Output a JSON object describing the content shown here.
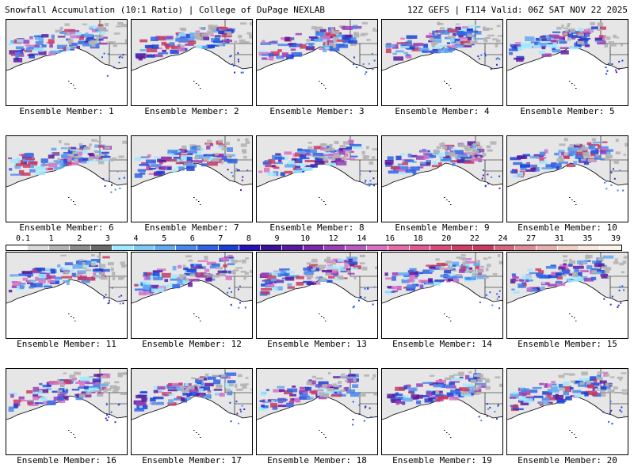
{
  "header": {
    "title": "Snowfall Accumulation (10:1 Ratio) | College of DuPage NEXLAB",
    "run_info": "12Z GEFS | F114 Valid: 06Z SAT NOV 22 2025"
  },
  "legend": {
    "ticks": [
      "0.1",
      "1",
      "2",
      "3",
      "4",
      "5",
      "6",
      "7",
      "8",
      "9",
      "10",
      "12",
      "14",
      "16",
      "18",
      "20",
      "22",
      "24",
      "27",
      "31",
      "35",
      "39"
    ],
    "colors": [
      "#ffffff",
      "#d9d9d9",
      "#b3b3b3",
      "#8c8c8c",
      "#6a6a6a",
      "#9ee9ff",
      "#7ec8f6",
      "#63a8f0",
      "#4a86ea",
      "#2f63e3",
      "#1a3fd6",
      "#2612b7",
      "#3b0f9e",
      "#5a1aa0",
      "#7a2aa8",
      "#9a3fb5",
      "#b85bc0",
      "#d670c4",
      "#e36ba7",
      "#e05a8f",
      "#d94b7a",
      "#cf3d69",
      "#c93a63",
      "#d3667d",
      "#dd8c95",
      "#e7b0ad",
      "#f0d0c5",
      "#f8e7db",
      "#fcf3e7"
    ]
  },
  "panels": [
    {
      "label": "Ensemble Member: 1"
    },
    {
      "label": "Ensemble Member: 2"
    },
    {
      "label": "Ensemble Member: 3"
    },
    {
      "label": "Ensemble Member: 4"
    },
    {
      "label": "Ensemble Member: 5"
    },
    {
      "label": "Ensemble Member: 6"
    },
    {
      "label": "Ensemble Member: 7"
    },
    {
      "label": "Ensemble Member: 8"
    },
    {
      "label": "Ensemble Member: 9"
    },
    {
      "label": "Ensemble Member: 10"
    },
    {
      "label": "Ensemble Member: 11"
    },
    {
      "label": "Ensemble Member: 12"
    },
    {
      "label": "Ensemble Member: 13"
    },
    {
      "label": "Ensemble Member: 14"
    },
    {
      "label": "Ensemble Member: 15"
    },
    {
      "label": "Ensemble Member: 16"
    },
    {
      "label": "Ensemble Member: 17"
    },
    {
      "label": "Ensemble Member: 18"
    },
    {
      "label": "Ensemble Member: 19"
    },
    {
      "label": "Ensemble Member: 20"
    }
  ]
}
